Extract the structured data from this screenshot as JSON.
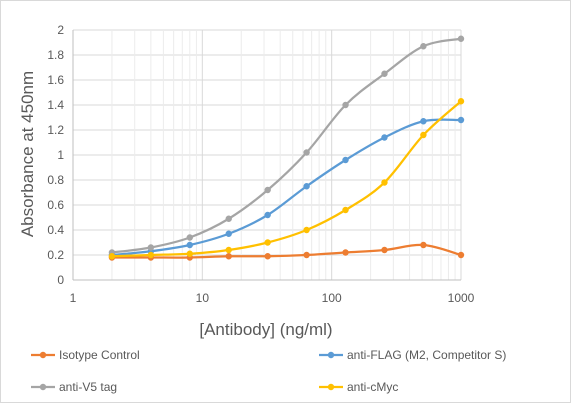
{
  "chart_data": {
    "type": "line",
    "xscale": "log",
    "xlim": [
      1,
      1000
    ],
    "ylim": [
      0,
      2
    ],
    "x_ticks": [
      1,
      10,
      100,
      1000
    ],
    "y_ticks": [
      0,
      0.2,
      0.4,
      0.6,
      0.8,
      1,
      1.2,
      1.4,
      1.6,
      1.8,
      2
    ],
    "xlabel": "[Antibody] (ng/ml)",
    "ylabel": "Absorbance at 450nm",
    "grid": true,
    "legend": "bottom",
    "x": [
      2,
      4,
      8,
      16,
      32,
      64,
      128,
      256,
      512,
      1000
    ],
    "series": [
      {
        "name": "Isotype Control",
        "color": "#ED7D31",
        "values": [
          0.18,
          0.18,
          0.18,
          0.19,
          0.19,
          0.2,
          0.22,
          0.24,
          0.28,
          0.2
        ]
      },
      {
        "name": "anti-FLAG (M2, Competitor S)",
        "color": "#5B9BD5",
        "values": [
          0.2,
          0.23,
          0.28,
          0.37,
          0.52,
          0.75,
          0.96,
          1.14,
          1.27,
          1.28
        ]
      },
      {
        "name": "anti-V5 tag",
        "color": "#A5A5A5",
        "values": [
          0.22,
          0.26,
          0.34,
          0.49,
          0.72,
          1.02,
          1.4,
          1.65,
          1.87,
          1.93
        ]
      },
      {
        "name": "anti-cMyc",
        "color": "#FFC000",
        "values": [
          0.19,
          0.2,
          0.21,
          0.24,
          0.3,
          0.4,
          0.56,
          0.78,
          1.16,
          1.43
        ]
      }
    ]
  }
}
